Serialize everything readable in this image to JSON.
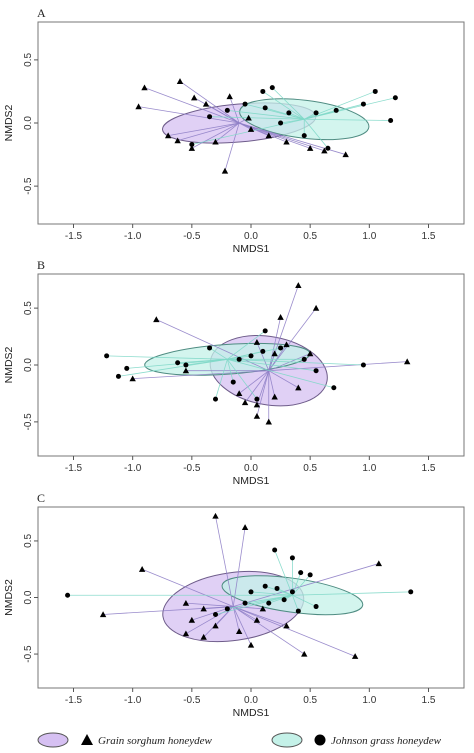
{
  "colors": {
    "grain_fill": "#d6c0f2",
    "grain_edge": "#6e5c8a",
    "grain_spoke": "#8f7fc6",
    "johnson_fill": "#c4f1e8",
    "johnson_edge": "#4f8c82",
    "johnson_spoke": "#7fd8c8",
    "frame": "#777777",
    "marker": "#000000"
  },
  "legend": [
    {
      "label": "Grain sorghum honeydew",
      "marker": "triangle",
      "fill": "#d6c0f2"
    },
    {
      "label": "Johnson grass honeydew",
      "marker": "circle",
      "fill": "#c4f1e8"
    }
  ],
  "chart_data": [
    {
      "panel": "A",
      "type": "scatter",
      "xlabel": "NMDS1",
      "ylabel": "NMDS2",
      "xlim": [
        -1.8,
        1.8
      ],
      "ylim": [
        -0.8,
        0.8
      ],
      "xticks": [
        -1.5,
        -1.0,
        -0.5,
        0.0,
        0.5,
        1.0,
        1.5
      ],
      "xticklabels": [
        "-1.5",
        "-1.0",
        "-0.5",
        "0.0",
        "0.5",
        "1.0",
        "1.5"
      ],
      "yticks": [
        -0.5,
        0.0,
        0.5
      ],
      "yticklabels": [
        "-0.5",
        "0.0",
        "0.5"
      ],
      "series": [
        {
          "name": "Grain sorghum honeydew",
          "marker": "triangle",
          "centroid": [
            -0.1,
            0.0
          ],
          "ellipse": {
            "rx": 0.65,
            "ry": 0.15,
            "angle": -5
          },
          "points": [
            [
              -0.9,
              0.28
            ],
            [
              -0.95,
              0.13
            ],
            [
              -0.6,
              0.33
            ],
            [
              -0.48,
              0.2
            ],
            [
              -0.38,
              0.15
            ],
            [
              -0.18,
              0.21
            ],
            [
              -0.02,
              0.04
            ],
            [
              -0.7,
              -0.1
            ],
            [
              -0.62,
              -0.14
            ],
            [
              -0.5,
              -0.2
            ],
            [
              -0.3,
              -0.15
            ],
            [
              -0.22,
              -0.38
            ],
            [
              0.0,
              -0.05
            ],
            [
              0.15,
              -0.1
            ],
            [
              0.3,
              -0.15
            ],
            [
              0.5,
              -0.2
            ],
            [
              0.62,
              -0.22
            ],
            [
              0.8,
              -0.25
            ]
          ]
        },
        {
          "name": "Johnson grass honeydew",
          "marker": "circle",
          "centroid": [
            0.45,
            0.03
          ],
          "ellipse": {
            "rx": 0.55,
            "ry": 0.15,
            "angle": 7
          },
          "points": [
            [
              1.05,
              0.25
            ],
            [
              1.22,
              0.2
            ],
            [
              1.18,
              0.02
            ],
            [
              0.95,
              0.15
            ],
            [
              0.72,
              0.1
            ],
            [
              0.55,
              0.08
            ],
            [
              0.45,
              -0.1
            ],
            [
              0.32,
              0.08
            ],
            [
              0.25,
              0.0
            ],
            [
              0.18,
              0.28
            ],
            [
              0.1,
              0.25
            ],
            [
              0.12,
              0.12
            ],
            [
              -0.05,
              0.15
            ],
            [
              -0.2,
              0.1
            ],
            [
              -0.35,
              0.05
            ],
            [
              -0.5,
              -0.17
            ],
            [
              0.65,
              -0.2
            ]
          ]
        }
      ]
    },
    {
      "panel": "B",
      "type": "scatter",
      "xlabel": "NMDS1",
      "ylabel": "NMDS2",
      "xlim": [
        -1.8,
        1.8
      ],
      "ylim": [
        -0.8,
        0.8
      ],
      "xticks": [
        -1.5,
        -1.0,
        -0.5,
        0.0,
        0.5,
        1.0,
        1.5
      ],
      "xticklabels": [
        "-1.5",
        "-1.0",
        "-0.5",
        "0.0",
        "0.5",
        "1.0",
        "1.5"
      ],
      "yticks": [
        -0.5,
        0.0,
        0.5
      ],
      "yticklabels": [
        "-0.5",
        "0.0",
        "0.5"
      ],
      "series": [
        {
          "name": "Grain sorghum honeydew",
          "marker": "triangle",
          "centroid": [
            0.15,
            -0.05
          ],
          "ellipse": {
            "rx": 0.5,
            "ry": 0.3,
            "angle": 10
          },
          "points": [
            [
              0.4,
              0.7
            ],
            [
              0.55,
              0.5
            ],
            [
              0.25,
              0.42
            ],
            [
              -0.8,
              0.4
            ],
            [
              0.05,
              0.2
            ],
            [
              0.3,
              0.18
            ],
            [
              0.5,
              0.1
            ],
            [
              0.2,
              0.1
            ],
            [
              1.32,
              0.03
            ],
            [
              -1.0,
              -0.12
            ],
            [
              -0.55,
              -0.05
            ],
            [
              -0.1,
              -0.25
            ],
            [
              0.05,
              -0.35
            ],
            [
              0.2,
              -0.28
            ],
            [
              0.15,
              -0.5
            ],
            [
              0.05,
              -0.45
            ],
            [
              -0.05,
              -0.33
            ],
            [
              0.4,
              -0.2
            ]
          ]
        },
        {
          "name": "Johnson grass honeydew",
          "marker": "circle",
          "centroid": [
            -0.2,
            0.05
          ],
          "ellipse": {
            "rx": 0.7,
            "ry": 0.13,
            "angle": -4
          },
          "points": [
            [
              -1.22,
              0.08
            ],
            [
              -1.05,
              -0.03
            ],
            [
              -1.12,
              -0.1
            ],
            [
              -0.62,
              0.02
            ],
            [
              -0.55,
              0.0
            ],
            [
              -0.35,
              0.15
            ],
            [
              -0.1,
              0.05
            ],
            [
              0.0,
              0.08
            ],
            [
              0.1,
              0.12
            ],
            [
              0.25,
              0.15
            ],
            [
              0.45,
              0.05
            ],
            [
              0.55,
              -0.05
            ],
            [
              0.7,
              -0.2
            ],
            [
              0.95,
              0.0
            ],
            [
              0.12,
              0.3
            ],
            [
              0.05,
              -0.3
            ],
            [
              -0.3,
              -0.3
            ],
            [
              -0.15,
              -0.15
            ]
          ]
        }
      ]
    },
    {
      "panel": "C",
      "type": "scatter",
      "xlabel": "NMDS1",
      "ylabel": "NMDS2",
      "xlim": [
        -1.8,
        1.8
      ],
      "ylim": [
        -0.8,
        0.8
      ],
      "xticks": [
        -1.5,
        -1.0,
        -0.5,
        0.0,
        0.5,
        1.0,
        1.5
      ],
      "xticklabels": [
        "-1.5",
        "-1.0",
        "-0.5",
        "0.0",
        "0.5",
        "1.0",
        "1.5"
      ],
      "yticks": [
        -0.5,
        0.0,
        0.5
      ],
      "yticklabels": [
        "-0.5",
        "0.0",
        "0.5"
      ],
      "series": [
        {
          "name": "Grain sorghum honeydew",
          "marker": "triangle",
          "centroid": [
            -0.15,
            -0.08
          ],
          "ellipse": {
            "rx": 0.6,
            "ry": 0.3,
            "angle": -8
          },
          "points": [
            [
              -0.3,
              0.72
            ],
            [
              -0.05,
              0.62
            ],
            [
              -0.92,
              0.25
            ],
            [
              -1.25,
              -0.15
            ],
            [
              -0.55,
              -0.05
            ],
            [
              -0.4,
              -0.1
            ],
            [
              -0.5,
              -0.2
            ],
            [
              -0.3,
              -0.25
            ],
            [
              -0.55,
              -0.32
            ],
            [
              -0.4,
              -0.35
            ],
            [
              -0.1,
              -0.3
            ],
            [
              0.0,
              -0.42
            ],
            [
              0.05,
              -0.2
            ],
            [
              0.1,
              -0.1
            ],
            [
              0.3,
              -0.25
            ],
            [
              0.45,
              -0.5
            ],
            [
              0.88,
              -0.52
            ],
            [
              1.08,
              0.3
            ]
          ]
        },
        {
          "name": "Johnson grass honeydew",
          "marker": "circle",
          "centroid": [
            0.35,
            0.02
          ],
          "ellipse": {
            "rx": 0.6,
            "ry": 0.15,
            "angle": 8
          },
          "points": [
            [
              -1.55,
              0.02
            ],
            [
              1.35,
              0.05
            ],
            [
              0.5,
              0.2
            ],
            [
              0.42,
              0.22
            ],
            [
              0.2,
              0.42
            ],
            [
              0.35,
              0.35
            ],
            [
              0.12,
              0.1
            ],
            [
              0.22,
              0.08
            ],
            [
              0.35,
              0.05
            ],
            [
              0.28,
              -0.02
            ],
            [
              0.15,
              -0.05
            ],
            [
              -0.05,
              -0.05
            ],
            [
              -0.2,
              -0.1
            ],
            [
              0.4,
              -0.12
            ],
            [
              0.55,
              -0.08
            ],
            [
              -0.3,
              -0.15
            ],
            [
              0.0,
              0.05
            ]
          ]
        }
      ]
    }
  ]
}
